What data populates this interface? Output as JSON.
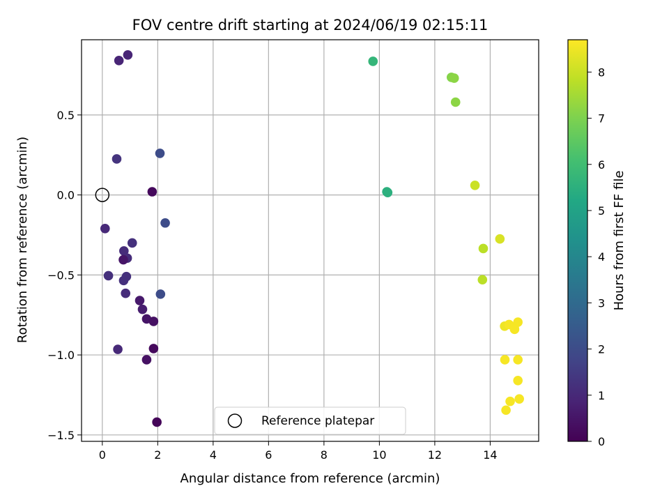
{
  "chart_data": {
    "type": "scatter",
    "title": "FOV centre drift starting at 2024/06/19 02:15:11",
    "xlabel": "Angular distance from reference (arcmin)",
    "ylabel": "Rotation from reference (arcmin)",
    "colorbar_label": "Hours from first FF file",
    "colormap": "viridis",
    "xlim": [
      -0.75,
      15.75
    ],
    "ylim": [
      -1.54,
      0.97
    ],
    "clim": [
      0,
      8.7
    ],
    "xticks": [
      0,
      2,
      4,
      6,
      8,
      10,
      12,
      14
    ],
    "yticks": [
      -1.5,
      -1.0,
      -0.5,
      0.0,
      0.5
    ],
    "ytick_labels": [
      "−1.5",
      "−1.0",
      "−0.5",
      "0.0",
      "0.5"
    ],
    "cticks": [
      0,
      1,
      2,
      3,
      4,
      5,
      6,
      7,
      8
    ],
    "grid": true,
    "legend": {
      "label": "Reference platepar",
      "placement": "lower-center"
    },
    "reference_point": {
      "x": 0,
      "y": 0
    },
    "points": [
      {
        "x": 0.6,
        "y": 0.84,
        "c": 0.9
      },
      {
        "x": 0.92,
        "y": 0.875,
        "c": 0.9
      },
      {
        "x": 0.52,
        "y": 0.225,
        "c": 1.3
      },
      {
        "x": 1.8,
        "y": 0.02,
        "c": 0.2
      },
      {
        "x": 2.08,
        "y": 0.26,
        "c": 2.0
      },
      {
        "x": 0.1,
        "y": -0.21,
        "c": 1.0
      },
      {
        "x": 2.27,
        "y": -0.175,
        "c": 2.0
      },
      {
        "x": 1.08,
        "y": -0.3,
        "c": 1.2
      },
      {
        "x": 0.78,
        "y": -0.35,
        "c": 1.1
      },
      {
        "x": 0.9,
        "y": -0.395,
        "c": 1.1
      },
      {
        "x": 0.76,
        "y": -0.405,
        "c": 0.5
      },
      {
        "x": 0.22,
        "y": -0.505,
        "c": 1.2
      },
      {
        "x": 0.87,
        "y": -0.51,
        "c": 1.2
      },
      {
        "x": 0.77,
        "y": -0.535,
        "c": 1.2
      },
      {
        "x": 0.84,
        "y": -0.615,
        "c": 1.1
      },
      {
        "x": 2.1,
        "y": -0.62,
        "c": 2.0
      },
      {
        "x": 1.35,
        "y": -0.66,
        "c": 0.6
      },
      {
        "x": 1.45,
        "y": -0.715,
        "c": 0.7
      },
      {
        "x": 1.6,
        "y": -0.775,
        "c": 0.5
      },
      {
        "x": 1.85,
        "y": -0.79,
        "c": 0.4
      },
      {
        "x": 0.56,
        "y": -0.965,
        "c": 1.0
      },
      {
        "x": 1.85,
        "y": -0.96,
        "c": 0.2
      },
      {
        "x": 1.6,
        "y": -1.03,
        "c": 0.4
      },
      {
        "x": 1.97,
        "y": -1.42,
        "c": 0.1
      },
      {
        "x": 9.77,
        "y": 0.835,
        "c": 5.7
      },
      {
        "x": 10.27,
        "y": 0.02,
        "c": 5.5
      },
      {
        "x": 10.3,
        "y": 0.015,
        "c": 5.5
      },
      {
        "x": 12.6,
        "y": 0.735,
        "c": 7.1
      },
      {
        "x": 12.7,
        "y": 0.73,
        "c": 7.2
      },
      {
        "x": 12.75,
        "y": 0.58,
        "c": 7.2
      },
      {
        "x": 13.45,
        "y": 0.06,
        "c": 8.0
      },
      {
        "x": 13.75,
        "y": -0.335,
        "c": 7.8
      },
      {
        "x": 14.35,
        "y": -0.275,
        "c": 8.2
      },
      {
        "x": 13.72,
        "y": -0.53,
        "c": 7.8
      },
      {
        "x": 14.52,
        "y": -0.82,
        "c": 8.5
      },
      {
        "x": 14.68,
        "y": -0.81,
        "c": 8.6
      },
      {
        "x": 14.87,
        "y": -0.83,
        "c": 8.6
      },
      {
        "x": 15.0,
        "y": -0.795,
        "c": 8.6
      },
      {
        "x": 14.88,
        "y": -0.84,
        "c": 8.6
      },
      {
        "x": 14.53,
        "y": -1.03,
        "c": 8.6
      },
      {
        "x": 15.0,
        "y": -1.03,
        "c": 8.6
      },
      {
        "x": 15.0,
        "y": -1.16,
        "c": 8.6
      },
      {
        "x": 14.72,
        "y": -1.29,
        "c": 8.6
      },
      {
        "x": 15.05,
        "y": -1.275,
        "c": 8.6
      },
      {
        "x": 14.57,
        "y": -1.345,
        "c": 8.6
      }
    ]
  }
}
